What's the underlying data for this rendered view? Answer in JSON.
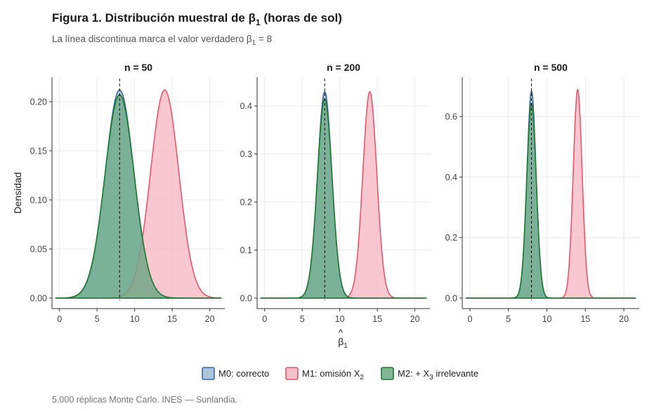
{
  "chart_data": {
    "type": "area",
    "title": {
      "text": "Figura 1. Distribución muestral de ",
      "symbol": "β",
      "sub": "1",
      "suffix": " (horas de sol)"
    },
    "subtitle": {
      "text": "La línea discontinua marca el valor verdadero ",
      "symbol": "β",
      "sub": "1",
      "suffix": " = 8"
    },
    "xlabel": {
      "symbol": "β",
      "sub": "1",
      "hat": "^"
    },
    "ylabel": "Densidad",
    "caption": "5.000 réplicas Monte Carlo. INES — Sunlandia.",
    "true_value": 8,
    "xlim": [
      -1,
      22
    ],
    "x_ticks": [
      0,
      5,
      10,
      15,
      20
    ],
    "legend": [
      {
        "key": "M0",
        "label": "M0: correcto",
        "sub": "",
        "suffix": "",
        "fill": "#9FBAD3",
        "stroke": "#3B6BA5"
      },
      {
        "key": "M1",
        "label": "M1: omisión X",
        "sub": "2",
        "suffix": "",
        "fill": "#F5B1BC",
        "stroke": "#E8576B"
      },
      {
        "key": "M2",
        "label": "M2: + X",
        "sub": "3",
        "suffix": " irrelevante",
        "fill": "#6BAA85",
        "stroke": "#1E7A33"
      }
    ],
    "panels": [
      {
        "strip": "n = 50",
        "ylim": [
          0,
          0.225
        ],
        "y_ticks": [
          0,
          0.05,
          0.1,
          0.15,
          0.2
        ],
        "y_tick_labels": [
          "0.00",
          "0.05",
          "0.10",
          "0.15",
          "0.20"
        ],
        "series": [
          {
            "name": "M0: correcto",
            "key": "M0",
            "x_min": -0.5,
            "x_max": 21.5,
            "mean": 8,
            "sd": 1.9,
            "peak": 0.212
          },
          {
            "name": "M1: omisión X2",
            "key": "M1",
            "x_min": -0.5,
            "x_max": 21.5,
            "mean": 14,
            "sd": 1.88,
            "peak": 0.212
          },
          {
            "name": "M2: + X3 irrelevante",
            "key": "M2",
            "x_min": -0.5,
            "x_max": 21.5,
            "mean": 8,
            "sd": 1.95,
            "peak": 0.207
          }
        ]
      },
      {
        "strip": "n = 200",
        "ylim": [
          0,
          0.46
        ],
        "y_ticks": [
          0,
          0.1,
          0.2,
          0.3,
          0.4
        ],
        "y_tick_labels": [
          "0.0",
          "0.1",
          "0.2",
          "0.3",
          "0.4"
        ],
        "series": [
          {
            "name": "M0: correcto",
            "key": "M0",
            "x_min": -0.5,
            "x_max": 21.5,
            "mean": 8,
            "sd": 0.95,
            "peak": 0.43
          },
          {
            "name": "M1: omisión X2",
            "key": "M1",
            "x_min": -0.5,
            "x_max": 21.5,
            "mean": 14,
            "sd": 0.93,
            "peak": 0.43
          },
          {
            "name": "M2: + X3 irrelevante",
            "key": "M2",
            "x_min": -0.5,
            "x_max": 21.5,
            "mean": 8,
            "sd": 0.98,
            "peak": 0.415
          }
        ]
      },
      {
        "strip": "n = 500",
        "ylim": [
          0,
          0.73
        ],
        "y_ticks": [
          0,
          0.2,
          0.4,
          0.6
        ],
        "y_tick_labels": [
          "0.0",
          "0.2",
          "0.4",
          "0.6"
        ],
        "series": [
          {
            "name": "M0: correcto",
            "key": "M0",
            "x_min": -0.5,
            "x_max": 21.5,
            "mean": 8,
            "sd": 0.59,
            "peak": 0.685
          },
          {
            "name": "M1: omisión X2",
            "key": "M1",
            "x_min": -0.5,
            "x_max": 21.5,
            "mean": 14,
            "sd": 0.58,
            "peak": 0.69
          },
          {
            "name": "M2: + X3 irrelevante",
            "key": "M2",
            "x_min": -0.5,
            "x_max": 21.5,
            "mean": 8,
            "sd": 0.62,
            "peak": 0.645
          }
        ]
      }
    ]
  }
}
